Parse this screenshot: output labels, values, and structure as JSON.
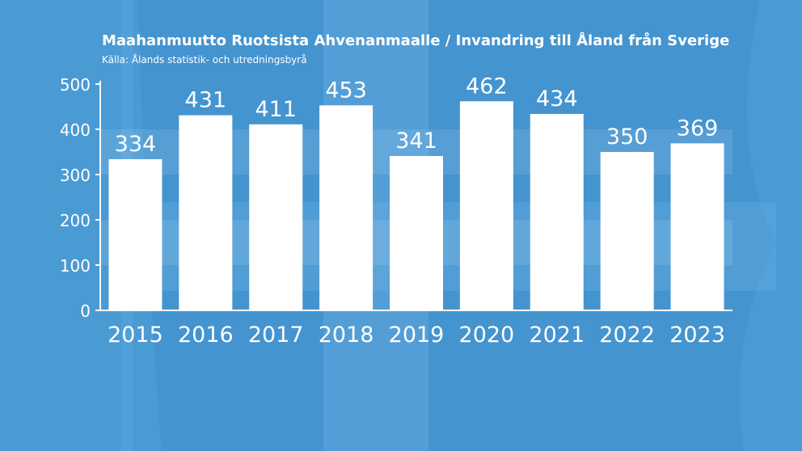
{
  "chart_data": {
    "type": "bar",
    "title": "Maahanmuutto Ruotsista Ahvenanmaalle / Invandring till Åland från Sverige",
    "subtitle": "Källa: Ålands statistik- och utredningsbyrå",
    "categories": [
      "2015",
      "2016",
      "2017",
      "2018",
      "2019",
      "2020",
      "2021",
      "2022",
      "2023"
    ],
    "values": [
      334,
      431,
      411,
      453,
      341,
      462,
      434,
      350,
      369
    ],
    "yticks": [
      "0",
      "100",
      "200",
      "300",
      "400",
      "500"
    ],
    "ylim": [
      0,
      500
    ],
    "xlabel": "",
    "ylabel": "",
    "grid": "horizontal bands",
    "legend": "none",
    "bar_color": "#ffffff",
    "text_color": "#ffffff",
    "background_color": "#4a9ad4"
  }
}
